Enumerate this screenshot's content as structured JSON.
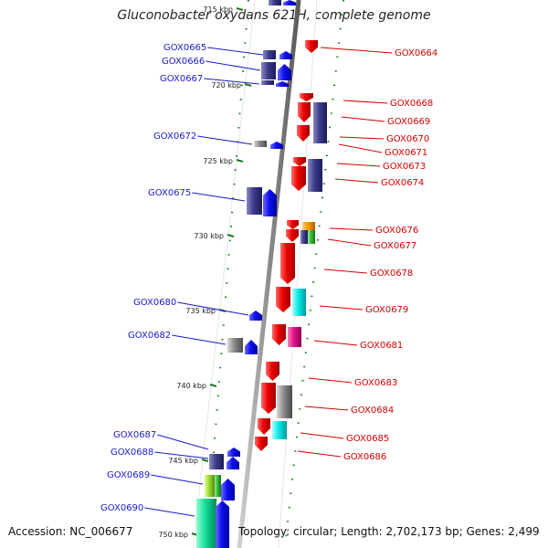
{
  "title": "Gluconobacter oxydans 621H, complete genome",
  "accession_text": "Accession: NC_006677",
  "topology_text": "Topology: circular; Length: 2,702,173 bp; Genes: 2,499",
  "colors": {
    "backbone": "#8c8c8c",
    "tick": "#1f7a1f",
    "forward_label": "#1a1acc",
    "reverse_label": "#d40000",
    "blue": "#1010ee",
    "navy": "#3c3c8c",
    "red": "#ee0000",
    "grey": "#8a8a8a",
    "cyan": "#00e8e8",
    "magenta": "#e0148c",
    "orange": "#ff9900",
    "green": "#33bb33",
    "lightgreen": "#99dd33",
    "teal": "#11dd99"
  },
  "scale": {
    "ticks": [
      {
        "label": "715 kbp",
        "kbp": 715
      },
      {
        "label": "720 kbp",
        "kbp": 720
      },
      {
        "label": "725 kbp",
        "kbp": 725
      },
      {
        "label": "730 kbp",
        "kbp": 730
      },
      {
        "label": "735 kbp",
        "kbp": 735
      },
      {
        "label": "740 kbp",
        "kbp": 740
      },
      {
        "label": "745 kbp",
        "kbp": 745
      },
      {
        "label": "750 kbp",
        "kbp": 750
      }
    ]
  },
  "genes_forward": [
    "GOX0665",
    "GOX0666",
    "GOX0667",
    "GOX0672",
    "GOX0675",
    "GOX0680",
    "GOX0682",
    "GOX0687",
    "GOX0688",
    "GOX0689",
    "GOX0690"
  ],
  "genes_reverse": [
    "GOX0664",
    "GOX0668",
    "GOX0669",
    "GOX0670",
    "GOX0671",
    "GOX0673",
    "GOX0674",
    "GOX0676",
    "GOX0677",
    "GOX0678",
    "GOX0679",
    "GOX0681",
    "GOX0683",
    "GOX0684",
    "GOX0685",
    "GOX0686"
  ]
}
